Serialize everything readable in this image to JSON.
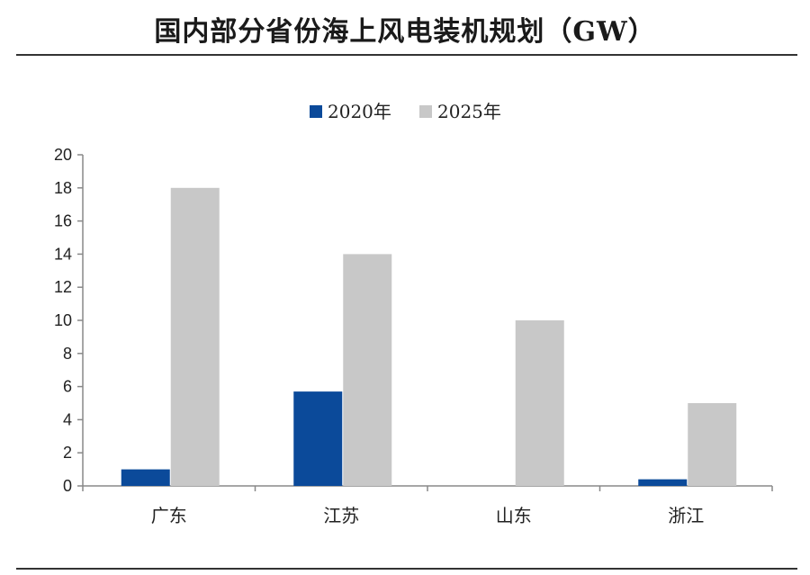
{
  "chart_data": {
    "type": "bar",
    "title": "国内部分省份海上风电装机规划（GW）",
    "categories": [
      "广东",
      "江苏",
      "山东",
      "浙江"
    ],
    "series": [
      {
        "name": "2020年",
        "color": "#0b4a9a",
        "values": [
          1.0,
          5.7,
          0,
          0.4
        ]
      },
      {
        "name": "2025年",
        "color": "#c8c8c8",
        "values": [
          18,
          14,
          10,
          5
        ]
      }
    ],
    "ylim": [
      0,
      20
    ],
    "yticks": [
      0,
      2,
      4,
      6,
      8,
      10,
      12,
      14,
      16,
      18,
      20
    ],
    "legend_position": "top-center",
    "grid": false
  }
}
